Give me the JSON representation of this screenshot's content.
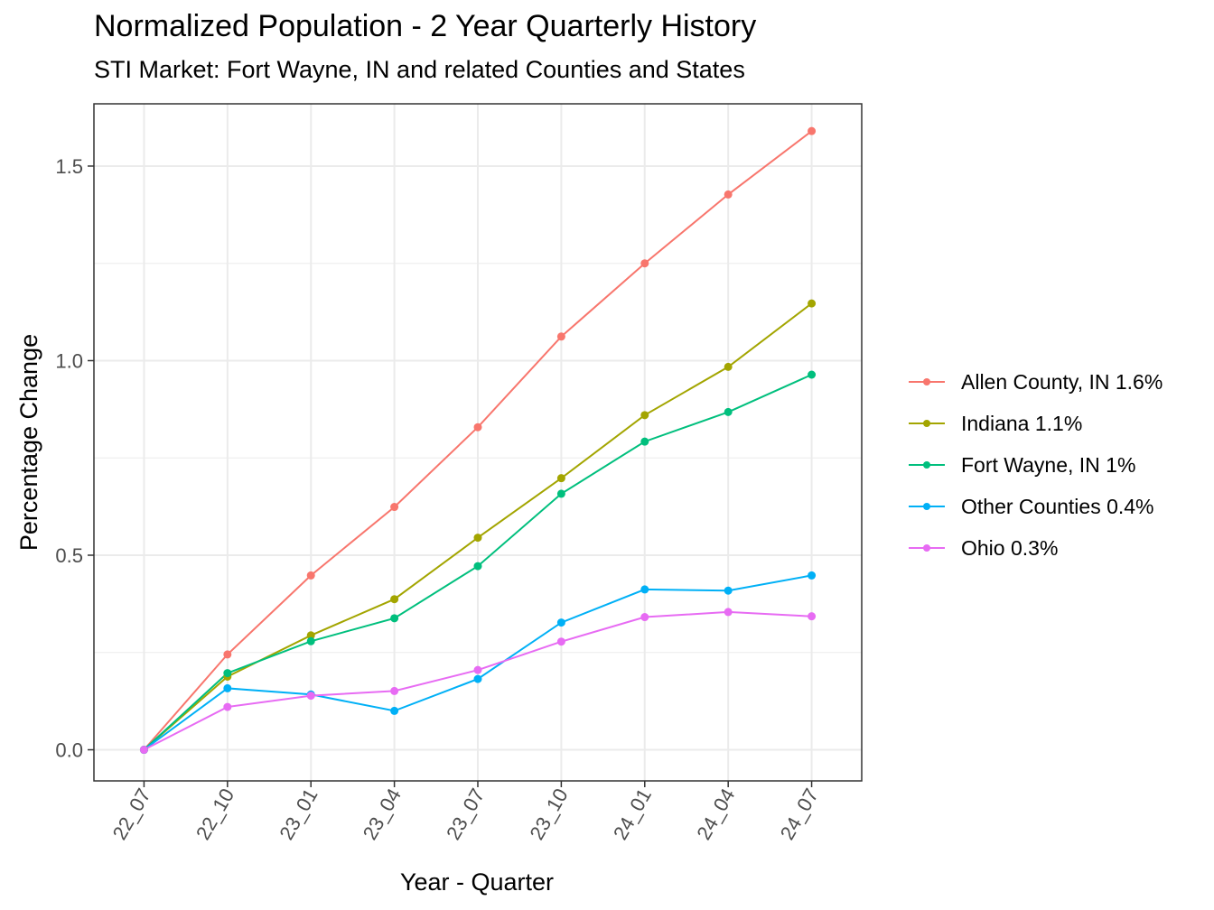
{
  "chart_data": {
    "type": "line",
    "title": "Normalized Population - 2 Year Quarterly History",
    "subtitle": "STI Market: Fort Wayne, IN and related Counties and States",
    "xlabel": "Year - Quarter",
    "ylabel": "Percentage Change",
    "categories": [
      "22_07",
      "22_10",
      "23_01",
      "23_04",
      "23_07",
      "23_10",
      "24_01",
      "24_04",
      "24_07"
    ],
    "y_ticks": [
      0.0,
      0.5,
      1.0,
      1.5
    ],
    "y_tick_labels": [
      "0.0",
      "0.5",
      "1.0",
      "1.5"
    ],
    "ylim": [
      -0.08,
      1.66
    ],
    "grid": true,
    "legend_position": "right",
    "series": [
      {
        "name": "Allen County, IN 1.6%",
        "color": "#F8766D",
        "values": [
          0.0,
          0.245,
          0.448,
          0.624,
          0.829,
          1.062,
          1.25,
          1.427,
          1.59
        ]
      },
      {
        "name": "Indiana 1.1%",
        "color": "#A3A500",
        "values": [
          0.0,
          0.188,
          0.294,
          0.387,
          0.545,
          0.698,
          0.86,
          0.984,
          1.147
        ]
      },
      {
        "name": "Fort Wayne, IN 1%",
        "color": "#00BF7D",
        "values": [
          0.0,
          0.197,
          0.279,
          0.338,
          0.472,
          0.658,
          0.792,
          0.868,
          0.964
        ]
      },
      {
        "name": "Other Counties 0.4%",
        "color": "#00B0F6",
        "values": [
          0.0,
          0.158,
          0.142,
          0.1,
          0.182,
          0.327,
          0.412,
          0.409,
          0.448
        ]
      },
      {
        "name": "Ohio 0.3%",
        "color": "#E76BF3",
        "values": [
          0.0,
          0.11,
          0.139,
          0.151,
          0.205,
          0.278,
          0.341,
          0.354,
          0.343
        ]
      }
    ]
  }
}
